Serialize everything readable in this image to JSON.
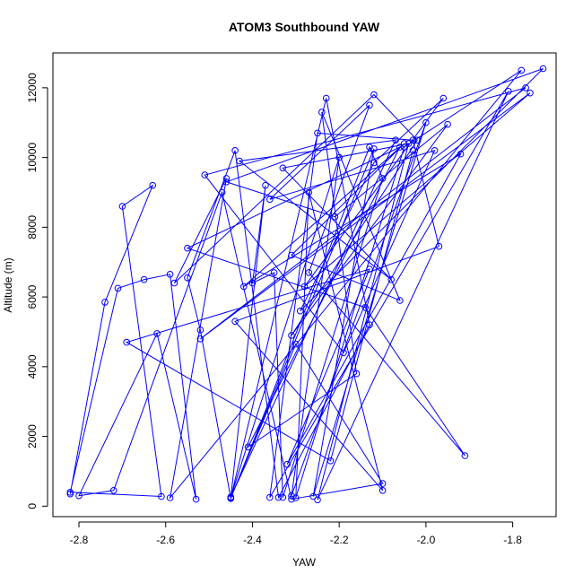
{
  "chart_data": {
    "type": "line",
    "title": "ATOM3 Southbound YAW",
    "xlabel": "YAW",
    "ylabel": "Altitude (m)",
    "xlim": [
      -2.86,
      -1.7
    ],
    "ylim": [
      -300,
      13000
    ],
    "x_ticks": [
      -2.8,
      -2.6,
      -2.4,
      -2.2,
      -2.0,
      -1.8
    ],
    "x_tick_labels": [
      "-2.8",
      "-2.6",
      "-2.4",
      "-2.2",
      "-2.0",
      "-1.8"
    ],
    "y_ticks": [
      0,
      2000,
      4000,
      6000,
      8000,
      10000,
      12000
    ],
    "y_tick_labels": [
      "0",
      "2000",
      "4000",
      "6000",
      "8000",
      "10000",
      "12000"
    ],
    "grid": false,
    "markers": "open-circle",
    "series": [
      {
        "color": "#0000ff",
        "x": [
          -2.82,
          -2.74,
          -2.63,
          -2.7,
          -2.61,
          -2.82,
          -2.71,
          -2.65,
          -2.59,
          -2.53,
          -2.62,
          -2.8,
          -2.72,
          -2.47,
          -2.31,
          -2.1,
          -2.3,
          -2.45,
          -2.37,
          -2.4,
          -2.35,
          -2.33,
          -2.1,
          -2.13,
          -2.45,
          -2.52,
          -2.55,
          -2.44,
          -2.34,
          -2.13,
          -2.23,
          -2.45,
          -2.12,
          -2.26,
          -2.0,
          -2.31,
          -2.2,
          -2.45,
          -2.07,
          -2.43,
          -2.08,
          -2.33,
          -2.04,
          -2.25,
          -1.81,
          -2.36,
          -2.25,
          -2.03,
          -1.97,
          -2.44,
          -2.1,
          -2.27,
          -2.3,
          -2.05,
          -1.78,
          -2.59,
          -2.46,
          -2.58,
          -2.12,
          -2.02,
          -2.31,
          -1.95,
          -2.21,
          -2.46,
          -1.73,
          -2.29,
          -2.12,
          -1.96,
          -2.28,
          -1.76,
          -2.52,
          -1.77,
          -2.51,
          -2.19,
          -1.98,
          -2.36,
          -2.13,
          -2.27,
          -1.91,
          -2.14,
          -2.55,
          -2.06,
          -2.41,
          -2.16,
          -2.24,
          -2.06,
          -2.31,
          -2.05,
          -2.42,
          -1.92,
          -2.32,
          -2.13,
          -2.69,
          -2.22,
          -2.03
        ],
        "y": [
          350,
          5850,
          9200,
          8600,
          280,
          400,
          6250,
          6500,
          6650,
          200,
          4950,
          300,
          450,
          9000,
          200,
          650,
          4650,
          250,
          9200,
          6400,
          6700,
          250,
          9400,
          10300,
          220,
          5050,
          6550,
          10200,
          250,
          5200,
          11700,
          240,
          10250,
          280,
          11000,
          300,
          10000,
          260,
          10500,
          9900,
          6500,
          9700,
          10400,
          180,
          11900,
          250,
          10700,
          10500,
          7450,
          5300,
          450,
          9000,
          240,
          10300,
          12500,
          240,
          9400,
          6400,
          11800,
          10500,
          4900,
          10950,
          8300,
          9300,
          12550,
          5600,
          9850,
          11700,
          6300,
          11850,
          4800,
          12000,
          9500,
          4400,
          10200,
          8800,
          11500,
          6700,
          1450,
          5700,
          7400,
          10300,
          1700,
          3800,
          11300,
          5900,
          7200,
          10400,
          6300,
          10100,
          1200,
          6800,
          4700,
          1300,
          10200
        ]
      }
    ]
  }
}
